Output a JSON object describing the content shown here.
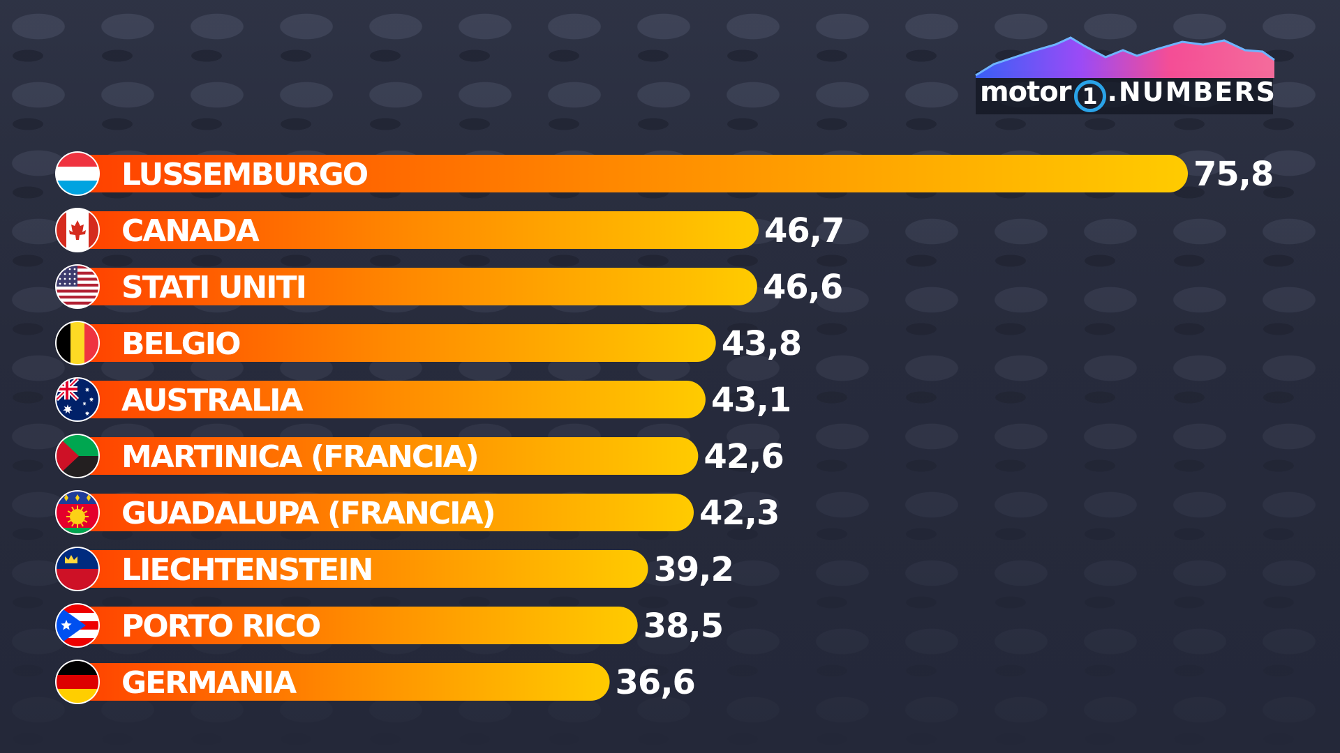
{
  "logo": {
    "brand": "motor",
    "one": "1",
    "numbers": ".NUMBERS"
  },
  "colors": {
    "bar_start": "#ff3f00",
    "bar_mid": "#ff8a00",
    "bar_end": "#ffcb00",
    "background": "#262a3b"
  },
  "chart_data": {
    "type": "bar",
    "orientation": "horizontal",
    "title": "",
    "xlabel": "",
    "ylabel": "",
    "xlim": [
      0,
      75.8
    ],
    "grid": false,
    "categories": [
      "LUSSEMBURGO",
      "CANADA",
      "STATI UNITI",
      "BELGIO",
      "AUSTRALIA",
      "MARTINICA (FRANCIA)",
      "GUADALUPA (FRANCIA)",
      "LIECHTENSTEIN",
      "PORTO RICO",
      "GERMANIA"
    ],
    "values": [
      75.8,
      46.7,
      46.6,
      43.8,
      43.1,
      42.6,
      42.3,
      39.2,
      38.5,
      36.6
    ],
    "value_labels": [
      "75,8",
      "46,7",
      "46,6",
      "43,8",
      "43,1",
      "42,6",
      "42,3",
      "39,2",
      "38,5",
      "36,6"
    ],
    "flags": [
      "luxembourg-flag-icon",
      "canada-flag-icon",
      "usa-flag-icon",
      "belgium-flag-icon",
      "australia-flag-icon",
      "martinique-flag-icon",
      "guadeloupe-flag-icon",
      "liechtenstein-flag-icon",
      "puerto-rico-flag-icon",
      "germany-flag-icon"
    ]
  }
}
